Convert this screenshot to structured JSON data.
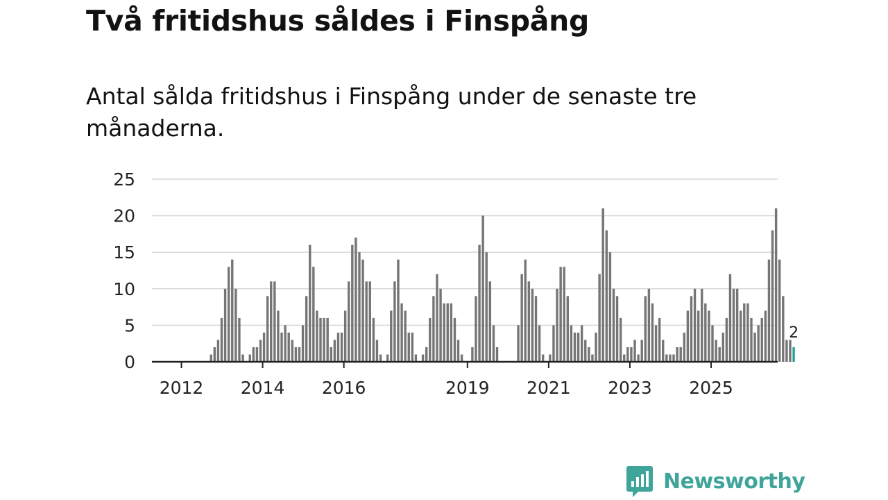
{
  "header": {
    "title": "Två fritidshus såldes i Finspång",
    "subtitle": "Antal sålda fritidshus i Finspång under de senaste tre månaderna."
  },
  "brand": {
    "name": "Newsworthy",
    "icon": "bar-chart-speech-bubble-icon",
    "color": "#3fa59b"
  },
  "chart_data": {
    "type": "bar",
    "title": "",
    "xlabel": "",
    "ylabel": "",
    "ylim": [
      0,
      25
    ],
    "y_ticks": [
      "0",
      "5",
      "10",
      "15",
      "20",
      "25"
    ],
    "x_tick_labels": [
      "2012",
      "2014",
      "2016",
      "2019",
      "2021",
      "2023",
      "2025"
    ],
    "grid": "horizontal",
    "bar_color": "#757575",
    "highlight_color": "#2aa198",
    "highlight_label": "2",
    "series": [
      {
        "values": [
          0,
          0,
          0,
          0,
          0,
          0,
          0,
          0,
          1,
          2,
          3,
          6,
          10,
          13,
          14,
          10,
          6,
          1,
          0,
          1,
          2,
          2,
          3,
          4,
          9,
          11,
          11,
          7,
          4,
          5,
          4,
          3,
          2,
          2,
          5,
          9,
          16,
          13,
          7,
          6,
          6,
          6,
          2,
          3,
          4,
          4,
          7,
          11,
          16,
          17,
          15,
          14,
          11,
          11,
          6,
          3,
          1,
          0,
          1,
          7,
          11,
          14,
          8,
          7,
          4,
          4,
          1,
          0,
          1,
          2,
          6,
          9,
          12,
          10,
          8,
          8,
          8,
          6,
          3,
          1,
          0,
          0,
          2,
          9,
          16,
          20,
          15,
          11,
          5,
          2,
          0,
          0,
          0,
          0,
          0,
          5,
          12,
          14,
          11,
          10,
          9,
          5,
          1,
          0,
          1,
          5,
          10,
          13,
          13,
          9,
          5,
          4,
          4,
          5,
          3,
          2,
          1,
          4,
          12,
          21,
          18,
          15,
          10,
          9,
          6,
          1,
          2,
          2,
          3,
          1,
          3,
          9,
          10,
          8,
          5,
          6,
          3,
          1,
          1,
          1,
          2,
          2,
          4,
          7,
          9,
          10,
          7,
          10,
          8,
          7,
          5,
          3,
          2,
          4,
          6,
          12,
          10,
          10,
          7,
          8,
          8,
          6,
          4,
          5,
          6,
          7,
          14,
          18,
          21,
          14,
          9,
          3,
          3,
          2
        ]
      }
    ]
  }
}
